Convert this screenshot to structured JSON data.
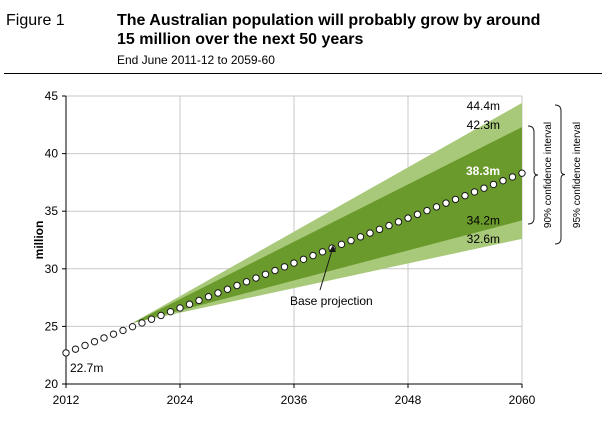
{
  "figure": {
    "label": "Figure 1",
    "title_line1": "The Australian population will probably grow by around",
    "title_line2": "15 million over the next 50 years",
    "subtitle": "End June 2011-12 to 2059-60"
  },
  "chart_data": {
    "type": "area",
    "title": "The Australian population will probably grow by around 15 million over the next 50 years",
    "subtitle": "End June 2011-12 to 2059-60",
    "xlabel": "",
    "ylabel": "million",
    "xlim": [
      2012,
      2060
    ],
    "ylim": [
      20,
      45
    ],
    "xticks": [
      2012,
      2024,
      2036,
      2048,
      2060
    ],
    "yticks": [
      20,
      25,
      30,
      35,
      40,
      45
    ],
    "grid": true,
    "series": [
      {
        "name": "95% confidence interval",
        "start": {
          "x": 2019,
          "y": 25.3
        },
        "upper_end": 44.4,
        "lower_end": 32.6
      },
      {
        "name": "90% confidence interval",
        "start": {
          "x": 2019,
          "y": 25.3
        },
        "upper_end": 42.3,
        "lower_end": 34.2
      },
      {
        "name": "Base projection",
        "start": {
          "x": 2012,
          "y": 22.7
        },
        "end": {
          "x": 2060,
          "y": 38.3
        },
        "points_per_year": 1
      }
    ],
    "annotations": {
      "start_label": "22.7m",
      "end_label": "38.3m",
      "upper95_label": "44.4m",
      "upper90_label": "42.3m",
      "lower90_label": "34.2m",
      "lower95_label": "32.6m",
      "base_label": "Base projection",
      "ci90_label": "90%  confidence interval",
      "ci95_label": "95% confidence interval"
    },
    "colors": {
      "ci95": "#a9c97a",
      "ci90": "#6b9a2c",
      "grid": "#c8c8c8",
      "point_fill": "#ffffff",
      "point_stroke": "#1a1a1a"
    }
  }
}
